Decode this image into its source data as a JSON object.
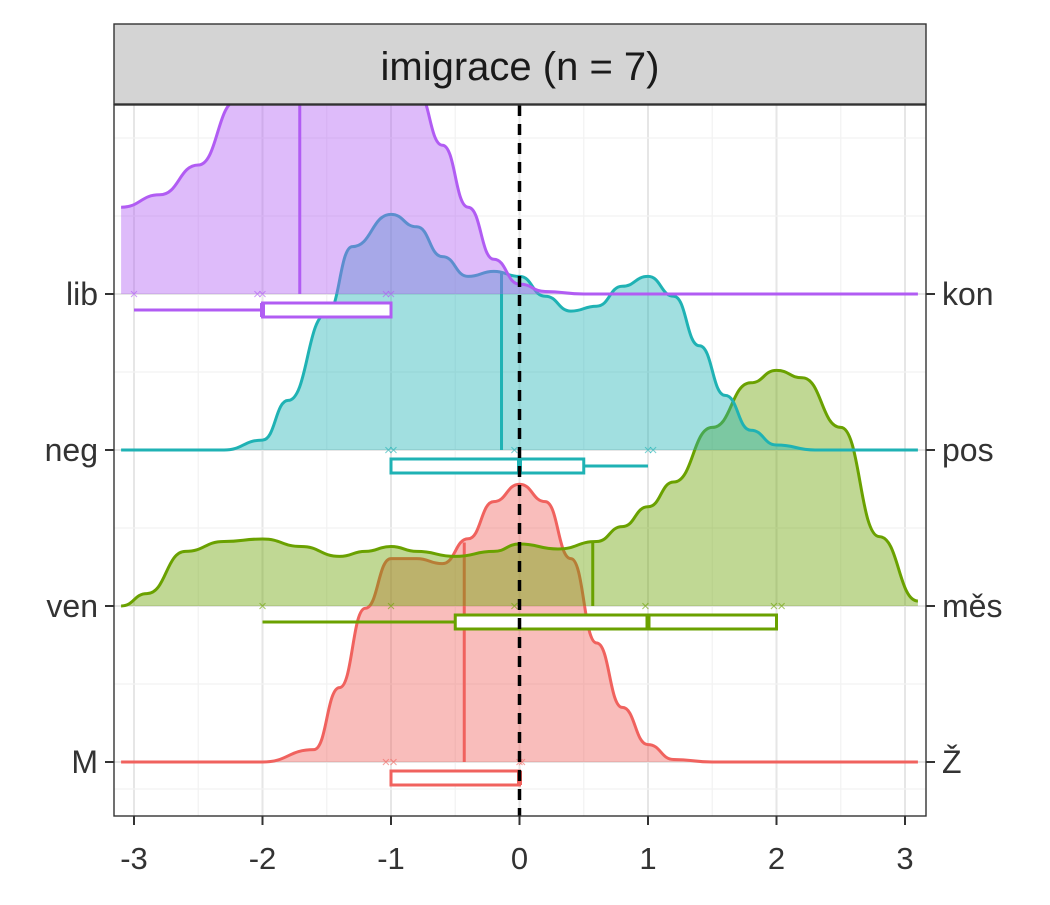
{
  "chart_data": {
    "type": "ridgeline",
    "title": "imigrace (n = 7)",
    "xlim": [
      -3.1,
      3.1
    ],
    "x_ticks": [
      -3,
      -2,
      -1,
      0,
      1,
      2,
      3
    ],
    "reference_line": {
      "x": 0,
      "style": "dashed",
      "color": "#000000"
    },
    "grid": true,
    "left_labels": [
      "M",
      "ven",
      "neg",
      "lib"
    ],
    "right_labels": [
      "Ž",
      "měs",
      "pos",
      "kon"
    ],
    "series": [
      {
        "left": "M",
        "right": "Ž",
        "color": "#F0625E",
        "density": [
          [
            -3.1,
            0
          ],
          [
            -2.0,
            0.0
          ],
          [
            -1.6,
            0.05
          ],
          [
            -1.4,
            0.3
          ],
          [
            -1.2,
            0.62
          ],
          [
            -1.0,
            0.82
          ],
          [
            -0.8,
            0.82
          ],
          [
            -0.6,
            0.8
          ],
          [
            -0.4,
            0.9
          ],
          [
            -0.2,
            1.05
          ],
          [
            0.0,
            1.12
          ],
          [
            0.2,
            1.05
          ],
          [
            0.4,
            0.82
          ],
          [
            0.6,
            0.48
          ],
          [
            0.8,
            0.22
          ],
          [
            1.0,
            0.07
          ],
          [
            1.2,
            0.01
          ],
          [
            1.5,
            0
          ],
          [
            3.1,
            0
          ]
        ],
        "mean": -0.43,
        "points": [
          -1.04,
          -0.98,
          0.0,
          0.02
        ],
        "box": {
          "whisker_low": -1.0,
          "q1": -1.0,
          "median": 0.0,
          "q3": 0.0,
          "whisker_high": 0.0
        }
      },
      {
        "left": "ven",
        "right": "měs",
        "color": "#6AA100",
        "density": [
          [
            -3.1,
            0
          ],
          [
            -2.9,
            0.05
          ],
          [
            -2.6,
            0.22
          ],
          [
            -2.3,
            0.26
          ],
          [
            -2.0,
            0.27
          ],
          [
            -1.7,
            0.24
          ],
          [
            -1.4,
            0.2
          ],
          [
            -1.2,
            0.22
          ],
          [
            -1.0,
            0.24
          ],
          [
            -0.8,
            0.22
          ],
          [
            -0.5,
            0.2
          ],
          [
            -0.2,
            0.22
          ],
          [
            0.0,
            0.25
          ],
          [
            0.3,
            0.23
          ],
          [
            0.6,
            0.26
          ],
          [
            0.8,
            0.32
          ],
          [
            1.0,
            0.4
          ],
          [
            1.2,
            0.5
          ],
          [
            1.5,
            0.72
          ],
          [
            1.8,
            0.9
          ],
          [
            2.0,
            0.95
          ],
          [
            2.2,
            0.92
          ],
          [
            2.5,
            0.72
          ],
          [
            2.8,
            0.28
          ],
          [
            3.1,
            0.02
          ]
        ],
        "mean": 0.57,
        "points": [
          -2.0,
          -1.0,
          -0.04,
          0.98,
          1.98,
          2.04
        ],
        "box": {
          "whisker_low": -2.0,
          "q1": -0.5,
          "median": 1.0,
          "q3": 2.0,
          "whisker_high": 2.0
        }
      },
      {
        "left": "neg",
        "right": "pos",
        "color": "#1FB2B4",
        "density": [
          [
            -3.1,
            0
          ],
          [
            -2.3,
            0.0
          ],
          [
            -2.0,
            0.04
          ],
          [
            -1.8,
            0.2
          ],
          [
            -1.5,
            0.55
          ],
          [
            -1.3,
            0.82
          ],
          [
            -1.0,
            0.95
          ],
          [
            -0.8,
            0.9
          ],
          [
            -0.6,
            0.78
          ],
          [
            -0.4,
            0.7
          ],
          [
            -0.2,
            0.72
          ],
          [
            0.0,
            0.7
          ],
          [
            0.2,
            0.62
          ],
          [
            0.4,
            0.56
          ],
          [
            0.6,
            0.58
          ],
          [
            0.8,
            0.66
          ],
          [
            1.0,
            0.7
          ],
          [
            1.2,
            0.62
          ],
          [
            1.4,
            0.42
          ],
          [
            1.6,
            0.22
          ],
          [
            1.8,
            0.08
          ],
          [
            2.0,
            0.02
          ],
          [
            2.3,
            0
          ],
          [
            3.1,
            0
          ]
        ],
        "mean": -0.14,
        "points": [
          -1.02,
          -0.98,
          -0.04,
          1.0,
          1.04
        ],
        "box": {
          "whisker_low": -1.0,
          "q1": -1.0,
          "median": 0.0,
          "q3": 0.5,
          "whisker_high": 1.0
        }
      },
      {
        "left": "lib",
        "right": "kon",
        "color": "#B15CF3",
        "density": [
          [
            -3.1,
            0.35
          ],
          [
            -2.8,
            0.4
          ],
          [
            -2.5,
            0.52
          ],
          [
            -2.2,
            0.78
          ],
          [
            -2.0,
            0.92
          ],
          [
            -1.8,
            0.92
          ],
          [
            -1.6,
            0.86
          ],
          [
            -1.4,
            0.82
          ],
          [
            -1.2,
            0.9
          ],
          [
            -1.0,
            0.92
          ],
          [
            -0.8,
            0.82
          ],
          [
            -0.6,
            0.6
          ],
          [
            -0.4,
            0.35
          ],
          [
            -0.2,
            0.14
          ],
          [
            0.0,
            0.04
          ],
          [
            0.2,
            0.01
          ],
          [
            0.5,
            0
          ],
          [
            3.1,
            0
          ]
        ],
        "mean": -1.71,
        "points": [
          -3.0,
          -2.04,
          -2.0,
          -1.04,
          -1.0
        ],
        "box": {
          "whisker_low": -3.0,
          "q1": -2.0,
          "median": -2.0,
          "q3": -1.0,
          "whisker_high": -1.0
        }
      }
    ]
  }
}
